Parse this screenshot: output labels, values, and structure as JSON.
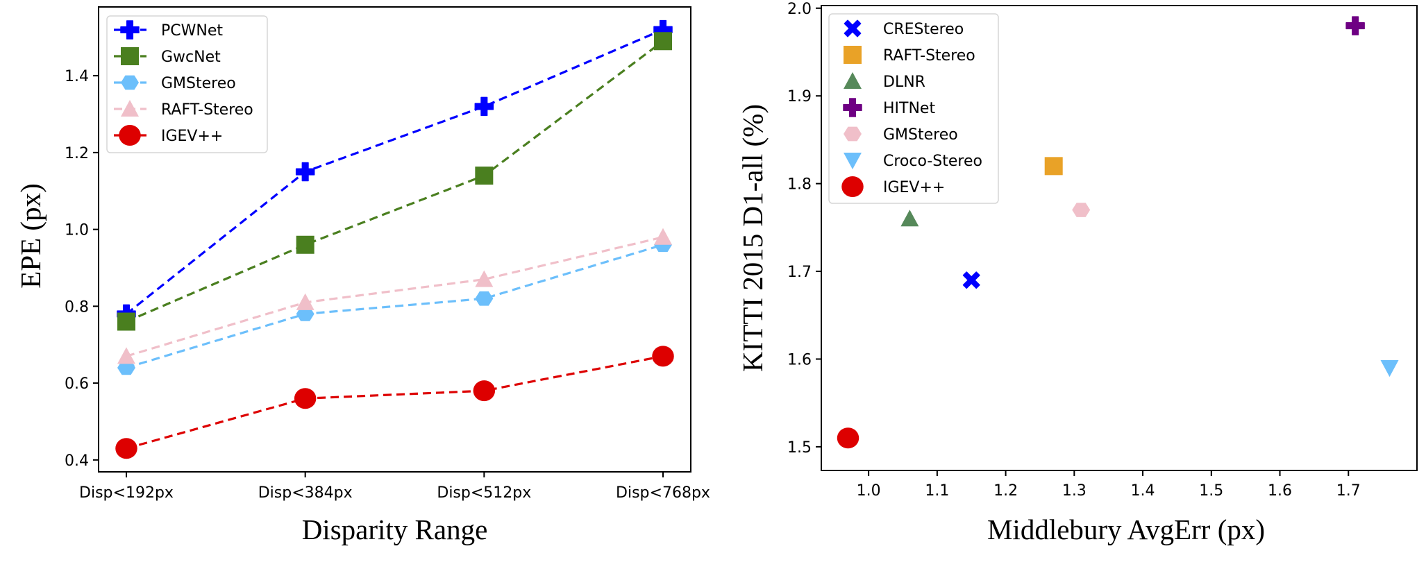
{
  "chart_data": [
    {
      "type": "line",
      "title": "",
      "xlabel": "Disparity Range",
      "ylabel": "EPE (px)",
      "categories": [
        "Disp<192px",
        "Disp<384px",
        "Disp<512px",
        "Disp<768px"
      ],
      "ylim": [
        0.369,
        1.579
      ],
      "yticks": [
        0.4,
        0.6,
        0.8,
        1.0,
        1.2,
        1.4
      ],
      "ytick_labels": [
        "0.4",
        "0.6",
        "0.8",
        "1.0",
        "1.2",
        "1.4"
      ],
      "grid": false,
      "legend_position": "top-left",
      "series": [
        {
          "name": "PCWNet",
          "marker": "plus",
          "color": "#0000ff",
          "values": [
            0.78,
            1.15,
            1.32,
            1.52
          ]
        },
        {
          "name": "GwcNet",
          "marker": "square",
          "color": "#4a7f1f",
          "values": [
            0.76,
            0.96,
            1.14,
            1.49
          ]
        },
        {
          "name": "GMStereo",
          "marker": "hexagon",
          "color": "#6cbffb",
          "values": [
            0.64,
            0.78,
            0.82,
            0.96
          ]
        },
        {
          "name": "RAFT-Stereo",
          "marker": "triangle-up",
          "color": "#f0bfc9",
          "values": [
            0.67,
            0.81,
            0.87,
            0.98
          ]
        },
        {
          "name": "IGEV++",
          "marker": "circle",
          "color": "#dd0000",
          "values": [
            0.43,
            0.56,
            0.58,
            0.67
          ]
        }
      ]
    },
    {
      "type": "scatter",
      "title": "",
      "xlabel": "Middlebury AvgErr (px)",
      "ylabel": "KITTI 2015 D1-all (%)",
      "xlim": [
        0.931,
        1.8
      ],
      "ylim": [
        1.473,
        2.003
      ],
      "xticks": [
        1.0,
        1.1,
        1.2,
        1.3,
        1.4,
        1.5,
        1.6,
        1.7
      ],
      "xtick_labels": [
        "1.0",
        "1.1",
        "1.2",
        "1.3",
        "1.4",
        "1.5",
        "1.6",
        "1.7"
      ],
      "yticks": [
        1.5,
        1.6,
        1.7,
        1.8,
        1.9,
        2.0
      ],
      "ytick_labels": [
        "1.5",
        "1.6",
        "1.7",
        "1.8",
        "1.9",
        "2.0"
      ],
      "grid": false,
      "legend_position": "top-left",
      "series": [
        {
          "name": "CREStereo",
          "marker": "x-filled",
          "color": "#0000ff",
          "x": 1.15,
          "y": 1.69
        },
        {
          "name": "RAFT-Stereo",
          "marker": "square",
          "color": "#e9a227",
          "x": 1.27,
          "y": 1.82
        },
        {
          "name": "DLNR",
          "marker": "triangle-up",
          "color": "#56895a",
          "x": 1.06,
          "y": 1.76
        },
        {
          "name": "HITNet",
          "marker": "plus",
          "color": "#6e0083",
          "x": 1.71,
          "y": 1.98
        },
        {
          "name": "GMStereo",
          "marker": "hexagon",
          "color": "#f0bfc9",
          "x": 1.31,
          "y": 1.77
        },
        {
          "name": "Croco-Stereo",
          "marker": "triangle-down",
          "color": "#6cbffb",
          "x": 1.76,
          "y": 1.59
        },
        {
          "name": "IGEV++",
          "marker": "circle",
          "color": "#dd0000",
          "x": 0.97,
          "y": 1.51
        }
      ]
    }
  ]
}
